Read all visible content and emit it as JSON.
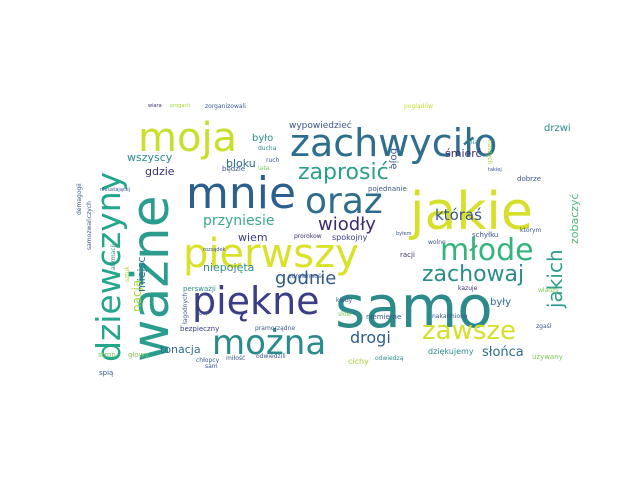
{
  "words": [
    {
      "text": "samo",
      "color": "#2c8a8a"
    },
    {
      "text": "ważne",
      "color": "#2a9d8f"
    },
    {
      "text": "jakie",
      "color": "#d6e02a"
    },
    {
      "text": "zachwyciło",
      "color": "#2f6f8e"
    },
    {
      "text": "dziewczyny",
      "color": "#24a68a"
    },
    {
      "text": "mnie",
      "color": "#2b5f8d"
    },
    {
      "text": "pierwszy",
      "color": "#d9e22b"
    },
    {
      "text": "piękne",
      "color": "#3b3e86"
    },
    {
      "text": "moja",
      "color": "#c8df2b"
    },
    {
      "text": "oraz",
      "color": "#2f6d8d"
    },
    {
      "text": "młode",
      "color": "#34b37d"
    },
    {
      "text": "można",
      "color": "#2a8b8c"
    },
    {
      "text": "zawsze",
      "color": "#d6e02a"
    },
    {
      "text": "zaprosić",
      "color": "#2c9f8a"
    },
    {
      "text": "zachowaj",
      "color": "#2b8d8c"
    },
    {
      "text": "jakich",
      "color": "#2c9f8a"
    },
    {
      "text": "wiodły",
      "color": "#3c2a6e"
    },
    {
      "text": "któraś",
      "color": "#3a578c"
    },
    {
      "text": "godnie",
      "color": "#2f5a8a"
    },
    {
      "text": "drogi",
      "color": "#2b5e8b"
    },
    {
      "text": "przyniesie",
      "color": "#3aa98a"
    },
    {
      "text": "słońca",
      "color": "#2c6e8d"
    },
    {
      "text": "tonacja",
      "color": "#2c6e8d"
    },
    {
      "text": "nacja",
      "color": "#a5d63a"
    },
    {
      "text": "niepojęta",
      "color": "#35898c"
    },
    {
      "text": "miejsc",
      "color": "#2c6d8d"
    },
    {
      "text": "zobaczyć",
      "color": "#4cb77a"
    },
    {
      "text": "były",
      "color": "#2c6d8d"
    },
    {
      "text": "wszyscy",
      "color": "#2c8b8c"
    },
    {
      "text": "bloku",
      "color": "#2c6e8d"
    },
    {
      "text": "gdzie",
      "color": "#3a2f6e"
    },
    {
      "text": "wiem",
      "color": "#3a3c84"
    },
    {
      "text": "śmierć",
      "color": "#3b2b6e"
    },
    {
      "text": "drzwi",
      "color": "#2a8b8c"
    },
    {
      "text": "boję",
      "color": "#3a578c"
    },
    {
      "text": "było",
      "color": "#2c8d8a"
    },
    {
      "text": "wypowiedzieć",
      "color": "#3a578c"
    },
    {
      "text": "spokojny",
      "color": "#3a3c84"
    },
    {
      "text": "dziękujemy",
      "color": "#2c8d8a"
    },
    {
      "text": "cichy",
      "color": "#a5d63a"
    },
    {
      "text": "stron",
      "color": "#80c95a"
    },
    {
      "text": "głowy",
      "color": "#80c95a"
    },
    {
      "text": "chłopcy",
      "color": "#3a578c"
    },
    {
      "text": "miłość",
      "color": "#3a578c"
    },
    {
      "text": "odwiedzili",
      "color": "#3a578c"
    },
    {
      "text": "pojednanie",
      "color": "#3a578c"
    },
    {
      "text": "niemierne",
      "color": "#3a578c"
    },
    {
      "text": "persważji",
      "color": "#2c8d8a"
    },
    {
      "text": "bezpieczny",
      "color": "#3b3e86"
    },
    {
      "text": "pramorządne",
      "color": "#3a578c"
    },
    {
      "text": "kiedy",
      "color": "#3a578c"
    },
    {
      "text": "nakarmione",
      "color": "#3a578c"
    },
    {
      "text": "schyłku",
      "color": "#3a578c"
    },
    {
      "text": "którym",
      "color": "#3a578c"
    },
    {
      "text": "racji",
      "color": "#3a2f6e"
    },
    {
      "text": "dobrze",
      "color": "#3a578c"
    },
    {
      "text": "spokojny",
      "color": "#3a3c84"
    },
    {
      "text": "poglądów",
      "color": "#c8df2b"
    },
    {
      "text": "zorganizowali",
      "color": "#3a578c"
    },
    {
      "text": "wiara",
      "color": "#3a2f6e"
    },
    {
      "text": "progach",
      "color": "#a5d63a"
    },
    {
      "text": "ducha",
      "color": "#2c8d8a"
    },
    {
      "text": "będzie",
      "color": "#3a578c"
    },
    {
      "text": "ruch",
      "color": "#3a578c"
    },
    {
      "text": "lata",
      "color": "#80c95a"
    },
    {
      "text": "dnia",
      "color": "#2c8d8a"
    },
    {
      "text": "naszych",
      "color": "#a5d63a"
    },
    {
      "text": "takiej",
      "color": "#3a578c"
    },
    {
      "text": "używany",
      "color": "#80c95a"
    },
    {
      "text": "zgaśi",
      "color": "#3a578c"
    },
    {
      "text": "rozsądek",
      "color": "#3a578c"
    },
    {
      "text": "prorokow",
      "color": "#3a2f6e"
    },
    {
      "text": "samozwańczych",
      "color": "#3a578c"
    },
    {
      "text": "demagogii",
      "color": "#3a578c"
    },
    {
      "text": "spią",
      "color": "#3a578c"
    },
    {
      "text": "łagodnych",
      "color": "#3a578c"
    },
    {
      "text": "odwiedzą",
      "color": "#2c8d8a"
    },
    {
      "text": "byłem",
      "color": "#3a578c"
    },
    {
      "text": "wolne",
      "color": "#3a578c"
    },
    {
      "text": "sam",
      "color": "#3a578c"
    },
    {
      "text": "słów",
      "color": "#80c95a"
    },
    {
      "text": "nbcy",
      "color": "#3a578c"
    },
    {
      "text": "kazuje",
      "color": "#3a2f6e"
    },
    {
      "text": "władzy",
      "color": "#80c95a"
    },
    {
      "text": "nieustającej",
      "color": "#3a578c"
    },
    {
      "text": "afirmacji",
      "color": "#2c8d8a"
    },
    {
      "text": "odmienność",
      "color": "#3a578c"
    },
    {
      "text": "sztuk",
      "color": "#a5d63a"
    }
  ]
}
